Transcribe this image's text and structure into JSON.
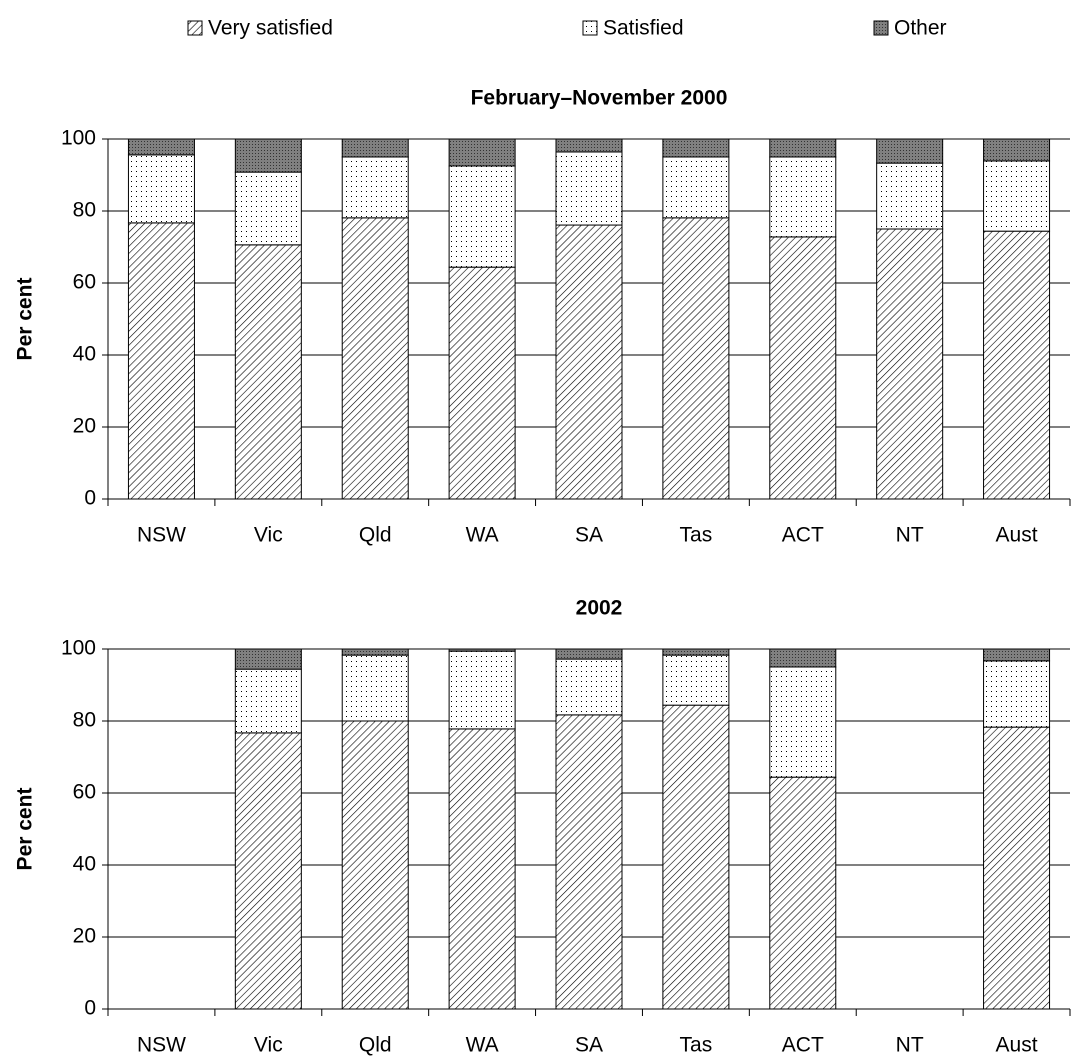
{
  "chart_data": [
    {
      "type": "stacked-bar",
      "title": "February–November 2000",
      "ylabel": "Per cent",
      "categories": [
        "NSW",
        "Vic",
        "Qld",
        "WA",
        "SA",
        "Tas",
        "ACT",
        "NT",
        "Aust"
      ],
      "ylim": [
        0,
        100
      ],
      "yticks": [
        0,
        20,
        40,
        60,
        80,
        100
      ],
      "grid": true,
      "series": [
        {
          "name": "Very satisfied",
          "pattern": "hatch",
          "color": "#000000",
          "values": [
            76.7,
            70.6,
            78.1,
            64.4,
            76.1,
            78.1,
            72.8,
            75.0,
            74.4
          ]
        },
        {
          "name": "Satisfied",
          "pattern": "dots",
          "color": "#000000",
          "values": [
            18.9,
            20.2,
            16.9,
            28.1,
            20.3,
            16.9,
            22.2,
            18.3,
            19.5
          ]
        },
        {
          "name": "Other",
          "pattern": "dark",
          "color": "#808080",
          "values": [
            4.4,
            9.2,
            5.0,
            7.5,
            3.6,
            5.0,
            5.0,
            6.7,
            6.1
          ]
        }
      ]
    },
    {
      "type": "stacked-bar",
      "title": "2002",
      "ylabel": "Per cent",
      "categories": [
        "NSW",
        "Vic",
        "Qld",
        "WA",
        "SA",
        "Tas",
        "ACT",
        "NT",
        "Aust"
      ],
      "ylim": [
        0,
        100
      ],
      "yticks": [
        0,
        20,
        40,
        60,
        80,
        100
      ],
      "grid": true,
      "series": [
        {
          "values": [
            null,
            76.7,
            80.0,
            77.8,
            81.7,
            84.4,
            64.4,
            null,
            78.3
          ]
        },
        {
          "values": [
            null,
            17.7,
            18.3,
            21.6,
            15.5,
            13.9,
            30.6,
            null,
            18.4
          ]
        },
        {
          "values": [
            null,
            5.6,
            1.7,
            0.6,
            2.8,
            1.7,
            5.0,
            null,
            3.3
          ]
        }
      ]
    }
  ]
}
